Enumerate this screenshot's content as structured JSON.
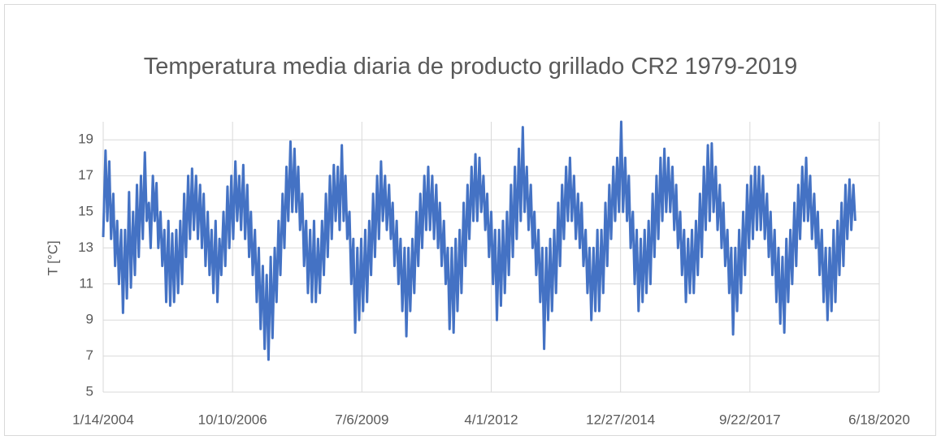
{
  "chart_data": {
    "type": "line",
    "title": "Temperatura media diaria de producto grillado CR2 1979-2019",
    "y_label": "T [°C]",
    "xlim": [
      "2004-01-14",
      "2020-06-18"
    ],
    "xticks": [
      {
        "value": "2004-01-14",
        "label": "1/14/2004"
      },
      {
        "value": "2006-10-10",
        "label": "10/10/2006"
      },
      {
        "value": "2009-07-06",
        "label": "7/6/2009"
      },
      {
        "value": "2012-04-01",
        "label": "4/1/2012"
      },
      {
        "value": "2014-12-27",
        "label": "12/27/2014"
      },
      {
        "value": "2017-09-22",
        "label": "9/22/2017"
      },
      {
        "value": "2020-06-18",
        "label": "6/18/2020"
      }
    ],
    "ylim": [
      5,
      20
    ],
    "yticks": [
      5,
      7,
      9,
      11,
      13,
      15,
      17,
      19
    ],
    "grid": true,
    "x": [
      "2004-01-14",
      "2004-02-01",
      "2004-02-15",
      "2004-03-01",
      "2004-03-15",
      "2004-04-01",
      "2004-04-15",
      "2004-05-01",
      "2004-05-15",
      "2004-06-01",
      "2004-06-15",
      "2004-07-01",
      "2004-07-15",
      "2004-08-01",
      "2004-08-15",
      "2004-09-01",
      "2004-09-15",
      "2004-10-01",
      "2004-10-15",
      "2004-11-01",
      "2004-11-15",
      "2004-12-01",
      "2004-12-15",
      "2005-01-01",
      "2005-01-15",
      "2005-02-01",
      "2005-02-15",
      "2005-03-01",
      "2005-03-15",
      "2005-04-01",
      "2005-04-15",
      "2005-05-01",
      "2005-05-15",
      "2005-06-01",
      "2005-06-15",
      "2005-07-01",
      "2005-07-15",
      "2005-08-01",
      "2005-08-15",
      "2005-09-01",
      "2005-09-15",
      "2005-10-01",
      "2005-10-15",
      "2005-11-01",
      "2005-11-15",
      "2005-12-01",
      "2005-12-15",
      "2006-01-01",
      "2006-01-15",
      "2006-02-01",
      "2006-02-15",
      "2006-03-01",
      "2006-03-15",
      "2006-04-01",
      "2006-04-15",
      "2006-05-01",
      "2006-05-15",
      "2006-06-01",
      "2006-06-15",
      "2006-07-01",
      "2006-07-15",
      "2006-08-01",
      "2006-08-15",
      "2006-09-01",
      "2006-09-15",
      "2006-10-01",
      "2006-10-15",
      "2006-11-01",
      "2006-11-15",
      "2006-12-01",
      "2006-12-15",
      "2007-01-01",
      "2007-01-15",
      "2007-02-01",
      "2007-02-15",
      "2007-03-01",
      "2007-03-15",
      "2007-04-01",
      "2007-04-15",
      "2007-05-01",
      "2007-05-15",
      "2007-06-01",
      "2007-06-15",
      "2007-07-01",
      "2007-07-15",
      "2007-08-01",
      "2007-08-15",
      "2007-09-01",
      "2007-09-15",
      "2007-10-01",
      "2007-10-15",
      "2007-11-01",
      "2007-11-15",
      "2007-12-01",
      "2007-12-15",
      "2008-01-01",
      "2008-01-15",
      "2008-02-01",
      "2008-02-15",
      "2008-03-01",
      "2008-03-15",
      "2008-04-01",
      "2008-04-15",
      "2008-05-01",
      "2008-05-15",
      "2008-06-01",
      "2008-06-15",
      "2008-07-01",
      "2008-07-15",
      "2008-08-01",
      "2008-08-15",
      "2008-09-01",
      "2008-09-15",
      "2008-10-01",
      "2008-10-15",
      "2008-11-01",
      "2008-11-15",
      "2008-12-01",
      "2008-12-15",
      "2009-01-01",
      "2009-01-15",
      "2009-02-01",
      "2009-02-15",
      "2009-03-01",
      "2009-03-15",
      "2009-04-01",
      "2009-04-15",
      "2009-05-01",
      "2009-05-15",
      "2009-06-01",
      "2009-06-15",
      "2009-07-01",
      "2009-07-15",
      "2009-08-01",
      "2009-08-15",
      "2009-09-01",
      "2009-09-15",
      "2009-10-01",
      "2009-10-15",
      "2009-11-01",
      "2009-11-15",
      "2009-12-01",
      "2009-12-15",
      "2010-01-01",
      "2010-01-15",
      "2010-02-01",
      "2010-02-15",
      "2010-03-01",
      "2010-03-15",
      "2010-04-01",
      "2010-04-15",
      "2010-05-01",
      "2010-05-15",
      "2010-06-01",
      "2010-06-15",
      "2010-07-01",
      "2010-07-15",
      "2010-08-01",
      "2010-08-15",
      "2010-09-01",
      "2010-09-15",
      "2010-10-01",
      "2010-10-15",
      "2010-11-01",
      "2010-11-15",
      "2010-12-01",
      "2010-12-15",
      "2011-01-01",
      "2011-01-15",
      "2011-02-01",
      "2011-02-15",
      "2011-03-01",
      "2011-03-15",
      "2011-04-01",
      "2011-04-15",
      "2011-05-01",
      "2011-05-15",
      "2011-06-01",
      "2011-06-15",
      "2011-07-01",
      "2011-07-15",
      "2011-08-01",
      "2011-08-15",
      "2011-09-01",
      "2011-09-15",
      "2011-10-01",
      "2011-10-15",
      "2011-11-01",
      "2011-11-15",
      "2011-12-01",
      "2011-12-15",
      "2012-01-01",
      "2012-01-15",
      "2012-02-01",
      "2012-02-15",
      "2012-03-01",
      "2012-03-15",
      "2012-04-01",
      "2012-04-15",
      "2012-05-01",
      "2012-05-15",
      "2012-06-01",
      "2012-06-15",
      "2012-07-01",
      "2012-07-15",
      "2012-08-01",
      "2012-08-15",
      "2012-09-01",
      "2012-09-15",
      "2012-10-01",
      "2012-10-15",
      "2012-11-01",
      "2012-11-15",
      "2012-12-01",
      "2012-12-15",
      "2013-01-01",
      "2013-01-15",
      "2013-02-01",
      "2013-02-15",
      "2013-03-01",
      "2013-03-15",
      "2013-04-01",
      "2013-04-15",
      "2013-05-01",
      "2013-05-15",
      "2013-06-01",
      "2013-06-15",
      "2013-07-01",
      "2013-07-15",
      "2013-08-01",
      "2013-08-15",
      "2013-09-01",
      "2013-09-15",
      "2013-10-01",
      "2013-10-15",
      "2013-11-01",
      "2013-11-15",
      "2013-12-01",
      "2013-12-15",
      "2014-01-01",
      "2014-01-15",
      "2014-02-01",
      "2014-02-15",
      "2014-03-01",
      "2014-03-15",
      "2014-04-01",
      "2014-04-15",
      "2014-05-01",
      "2014-05-15",
      "2014-06-01",
      "2014-06-15",
      "2014-07-01",
      "2014-07-15",
      "2014-08-01",
      "2014-08-15",
      "2014-09-01",
      "2014-09-15",
      "2014-10-01",
      "2014-10-15",
      "2014-11-01",
      "2014-11-15",
      "2014-12-01",
      "2014-12-15",
      "2015-01-01",
      "2015-01-15",
      "2015-02-01",
      "2015-02-15",
      "2015-03-01",
      "2015-03-15",
      "2015-04-01",
      "2015-04-15",
      "2015-05-01",
      "2015-05-15",
      "2015-06-01",
      "2015-06-15",
      "2015-07-01",
      "2015-07-15",
      "2015-08-01",
      "2015-08-15",
      "2015-09-01",
      "2015-09-15",
      "2015-10-01",
      "2015-10-15",
      "2015-11-01",
      "2015-11-15",
      "2015-12-01",
      "2015-12-15",
      "2016-01-01",
      "2016-01-15",
      "2016-02-01",
      "2016-02-15",
      "2016-03-01",
      "2016-03-15",
      "2016-04-01",
      "2016-04-15",
      "2016-05-01",
      "2016-05-15",
      "2016-06-01",
      "2016-06-15",
      "2016-07-01",
      "2016-07-15",
      "2016-08-01",
      "2016-08-15",
      "2016-09-01",
      "2016-09-15",
      "2016-10-01",
      "2016-10-15",
      "2016-11-01",
      "2016-11-15",
      "2016-12-01",
      "2016-12-15",
      "2017-01-01",
      "2017-01-15",
      "2017-02-01",
      "2017-02-15",
      "2017-03-01",
      "2017-03-15",
      "2017-04-01",
      "2017-04-15",
      "2017-05-01",
      "2017-05-15",
      "2017-06-01",
      "2017-06-15",
      "2017-07-01",
      "2017-07-15",
      "2017-08-01",
      "2017-08-15",
      "2017-09-01",
      "2017-09-15",
      "2017-10-01",
      "2017-10-15",
      "2017-11-01",
      "2017-11-15",
      "2017-12-01",
      "2017-12-15",
      "2018-01-01",
      "2018-01-15",
      "2018-02-01",
      "2018-02-15",
      "2018-03-01",
      "2018-03-15",
      "2018-04-01",
      "2018-04-15",
      "2018-05-01",
      "2018-05-15",
      "2018-06-01",
      "2018-06-15",
      "2018-07-01",
      "2018-07-15",
      "2018-08-01",
      "2018-08-15",
      "2018-09-01",
      "2018-09-15",
      "2018-10-01",
      "2018-10-15",
      "2018-11-01",
      "2018-11-15",
      "2018-12-01",
      "2018-12-15",
      "2019-01-01",
      "2019-01-15",
      "2019-02-01",
      "2019-02-15",
      "2019-03-01",
      "2019-03-15",
      "2019-04-01",
      "2019-04-15",
      "2019-05-01",
      "2019-05-15",
      "2019-06-01",
      "2019-06-15",
      "2019-07-01",
      "2019-07-15",
      "2019-08-01",
      "2019-08-15",
      "2019-09-01",
      "2019-09-15",
      "2019-10-01",
      "2019-10-15",
      "2019-11-01",
      "2019-11-15",
      "2019-12-01",
      "2019-12-15"
    ],
    "series": [
      {
        "color": "#4472c4",
        "values": [
          13.6,
          18.4,
          14.5,
          17.8,
          13.5,
          16.0,
          12.0,
          14.5,
          11.0,
          14.0,
          9.4,
          14.0,
          10.2,
          16.1,
          10.8,
          15.0,
          11.5,
          16.5,
          12.5,
          17.0,
          13.5,
          18.3,
          14.5,
          15.5,
          13.0,
          17.0,
          14.5,
          16.6,
          13.0,
          15.0,
          12.0,
          14.0,
          10.0,
          14.5,
          9.8,
          13.8,
          10.0,
          14.0,
          10.5,
          14.5,
          11.0,
          16.0,
          12.5,
          17.0,
          13.5,
          17.4,
          14.0,
          17.0,
          13.5,
          16.5,
          13.0,
          16.0,
          12.0,
          15.0,
          11.5,
          14.0,
          10.5,
          14.5,
          10.0,
          13.5,
          11.5,
          15.0,
          12.0,
          16.4,
          13.0,
          17.0,
          13.5,
          17.8,
          14.5,
          17.0,
          14.0,
          17.6,
          13.5,
          16.5,
          12.5,
          15.0,
          11.5,
          14.0,
          10.0,
          13.0,
          8.5,
          12.0,
          7.4,
          11.5,
          6.8,
          12.5,
          8.0,
          13.0,
          10.0,
          14.5,
          11.5,
          16.0,
          13.0,
          17.5,
          14.5,
          18.9,
          15.0,
          18.5,
          15.0,
          17.5,
          14.0,
          16.0,
          12.0,
          14.5,
          10.5,
          14.0,
          10.0,
          14.5,
          10.0,
          13.5,
          10.5,
          14.5,
          11.5,
          16.0,
          12.5,
          17.0,
          13.5,
          17.6,
          14.5,
          17.5,
          14.0,
          18.7,
          14.5,
          17.0,
          13.5,
          15.0,
          11.0,
          13.5,
          8.3,
          13.0,
          9.0,
          13.5,
          9.5,
          14.0,
          10.0,
          14.5,
          11.5,
          16.0,
          12.5,
          17.0,
          13.5,
          17.8,
          14.5,
          17.0,
          14.0,
          16.5,
          13.5,
          15.5,
          12.0,
          14.5,
          11.0,
          13.5,
          9.5,
          13.0,
          8.1,
          13.0,
          9.5,
          13.5,
          10.5,
          15.0,
          12.0,
          16.0,
          13.0,
          17.0,
          14.0,
          17.5,
          14.0,
          17.0,
          13.5,
          16.5,
          13.0,
          15.5,
          12.0,
          14.5,
          11.0,
          13.0,
          8.5,
          13.0,
          8.3,
          13.5,
          9.5,
          14.0,
          10.5,
          15.5,
          12.0,
          16.5,
          13.5,
          17.5,
          14.5,
          18.2,
          14.5,
          18.0,
          15.0,
          17.0,
          14.0,
          16.0,
          12.5,
          15.0,
          11.0,
          14.0,
          9.0,
          14.0,
          9.8,
          14.5,
          10.5,
          15.0,
          11.5,
          16.5,
          12.5,
          17.5,
          13.5,
          18.5,
          14.5,
          19.7,
          15.0,
          17.5,
          14.0,
          16.5,
          13.0,
          15.0,
          11.5,
          14.0,
          10.0,
          13.0,
          7.4,
          13.0,
          9.0,
          13.5,
          9.5,
          14.0,
          10.5,
          15.5,
          12.0,
          16.5,
          13.5,
          17.5,
          14.5,
          18.0,
          14.5,
          17.0,
          13.5,
          16.0,
          13.0,
          15.5,
          12.0,
          14.0,
          10.5,
          13.0,
          9.0,
          13.0,
          9.5,
          14.0,
          9.5,
          14.0,
          10.5,
          15.5,
          12.0,
          16.5,
          13.5,
          17.5,
          14.5,
          18.0,
          15.0,
          20.0,
          15.0,
          18.0,
          14.5,
          17.0,
          13.0,
          15.0,
          11.0,
          14.0,
          9.5,
          13.5,
          10.0,
          14.0,
          10.5,
          14.5,
          11.0,
          16.0,
          12.5,
          17.0,
          13.5,
          18.0,
          14.5,
          18.5,
          15.0,
          18.0,
          15.0,
          17.5,
          14.0,
          16.5,
          13.0,
          15.0,
          11.5,
          14.0,
          10.0,
          13.5,
          10.5,
          14.0,
          10.5,
          14.5,
          11.5,
          16.0,
          12.5,
          17.5,
          14.0,
          18.7,
          14.5,
          18.8,
          15.0,
          17.5,
          14.0,
          16.5,
          13.0,
          15.5,
          12.0,
          14.0,
          10.5,
          13.0,
          8.2,
          13.0,
          9.5,
          14.0,
          10.5,
          15.0,
          11.5,
          16.5,
          13.0,
          17.0,
          13.5,
          17.5,
          14.0,
          17.5,
          14.0,
          17.0,
          13.5,
          16.0,
          12.5,
          15.0,
          11.5,
          14.0,
          10.0,
          13.0,
          8.8,
          12.5,
          8.3,
          13.5,
          10.0,
          14.0,
          11.0,
          15.5,
          12.0,
          16.5,
          13.5,
          17.5,
          14.5,
          18.0,
          14.5,
          17.0,
          13.5,
          16.0,
          13.0,
          15.0,
          11.5,
          14.0,
          10.0,
          13.0,
          9.0,
          13.0,
          9.5,
          14.0,
          10.0,
          14.5,
          11.5,
          15.5,
          12.0,
          16.5,
          13.5,
          16.8,
          14.0,
          16.5,
          14.5
        ]
      }
    ]
  }
}
